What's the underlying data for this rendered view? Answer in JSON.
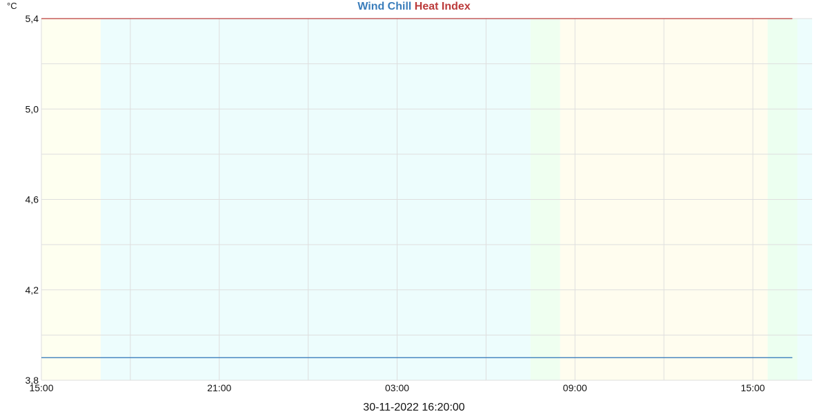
{
  "chart_data": {
    "type": "line",
    "title_parts": [
      {
        "text": "Wind Chill",
        "color": "#3a7dbb"
      },
      {
        "text": "Heat Index",
        "color": "#bb3a3a"
      }
    ],
    "y_unit": "°C",
    "footer": "30-11-2022 16:20:00",
    "ylim": [
      3.8,
      5.4
    ],
    "y_ticks": [
      {
        "value": 3.8,
        "label": "3,8"
      },
      {
        "value": 4.2,
        "label": "4,2"
      },
      {
        "value": 4.6,
        "label": "4,6"
      },
      {
        "value": 5.0,
        "label": "5,0"
      },
      {
        "value": 5.4,
        "label": "5,4"
      }
    ],
    "y_grid_values": [
      3.8,
      4.0,
      4.2,
      4.4,
      4.6,
      4.8,
      5.0,
      5.2,
      5.4
    ],
    "x_range": [
      "2022-11-29 15:00",
      "2022-11-30 17:00"
    ],
    "x_ticks": [
      {
        "time": "2022-11-29 15:00",
        "label": "15:00"
      },
      {
        "time": "2022-11-29 21:00",
        "label": "21:00"
      },
      {
        "time": "2022-11-30 03:00",
        "label": "03:00"
      },
      {
        "time": "2022-11-30 09:00",
        "label": "09:00"
      },
      {
        "time": "2022-11-30 15:00",
        "label": "15:00"
      }
    ],
    "x_grid_times": [
      "2022-11-29 15:00",
      "2022-11-29 18:00",
      "2022-11-29 21:00",
      "2022-11-30 00:00",
      "2022-11-30 03:00",
      "2022-11-30 06:00",
      "2022-11-30 09:00",
      "2022-11-30 12:00",
      "2022-11-30 15:00"
    ],
    "background_bands": [
      {
        "from": "2022-11-29 15:00",
        "to": "2022-11-29 17:00",
        "color": "#fefff0"
      },
      {
        "from": "2022-11-29 17:00",
        "to": "2022-11-30 07:30",
        "color": "#edfdfd"
      },
      {
        "from": "2022-11-30 07:30",
        "to": "2022-11-30 08:30",
        "color": "#effff0"
      },
      {
        "from": "2022-11-30 08:30",
        "to": "2022-11-30 15:30",
        "color": "#fffdef"
      },
      {
        "from": "2022-11-30 15:30",
        "to": "2022-11-30 16:30",
        "color": "#ecfff0"
      },
      {
        "from": "2022-11-30 16:30",
        "to": "2022-11-30 17:00",
        "color": "#edfdfd"
      }
    ],
    "series": [
      {
        "name": "Wind Chill",
        "color": "#3a7dbb",
        "x": [
          "2022-11-29 15:00",
          "2022-11-30 16:20"
        ],
        "values": [
          3.9,
          3.9
        ]
      },
      {
        "name": "Heat Index",
        "color": "#bb3a3a",
        "x": [
          "2022-11-29 15:00",
          "2022-11-30 16:20"
        ],
        "values": [
          5.4,
          5.4
        ]
      }
    ],
    "grid": true
  }
}
